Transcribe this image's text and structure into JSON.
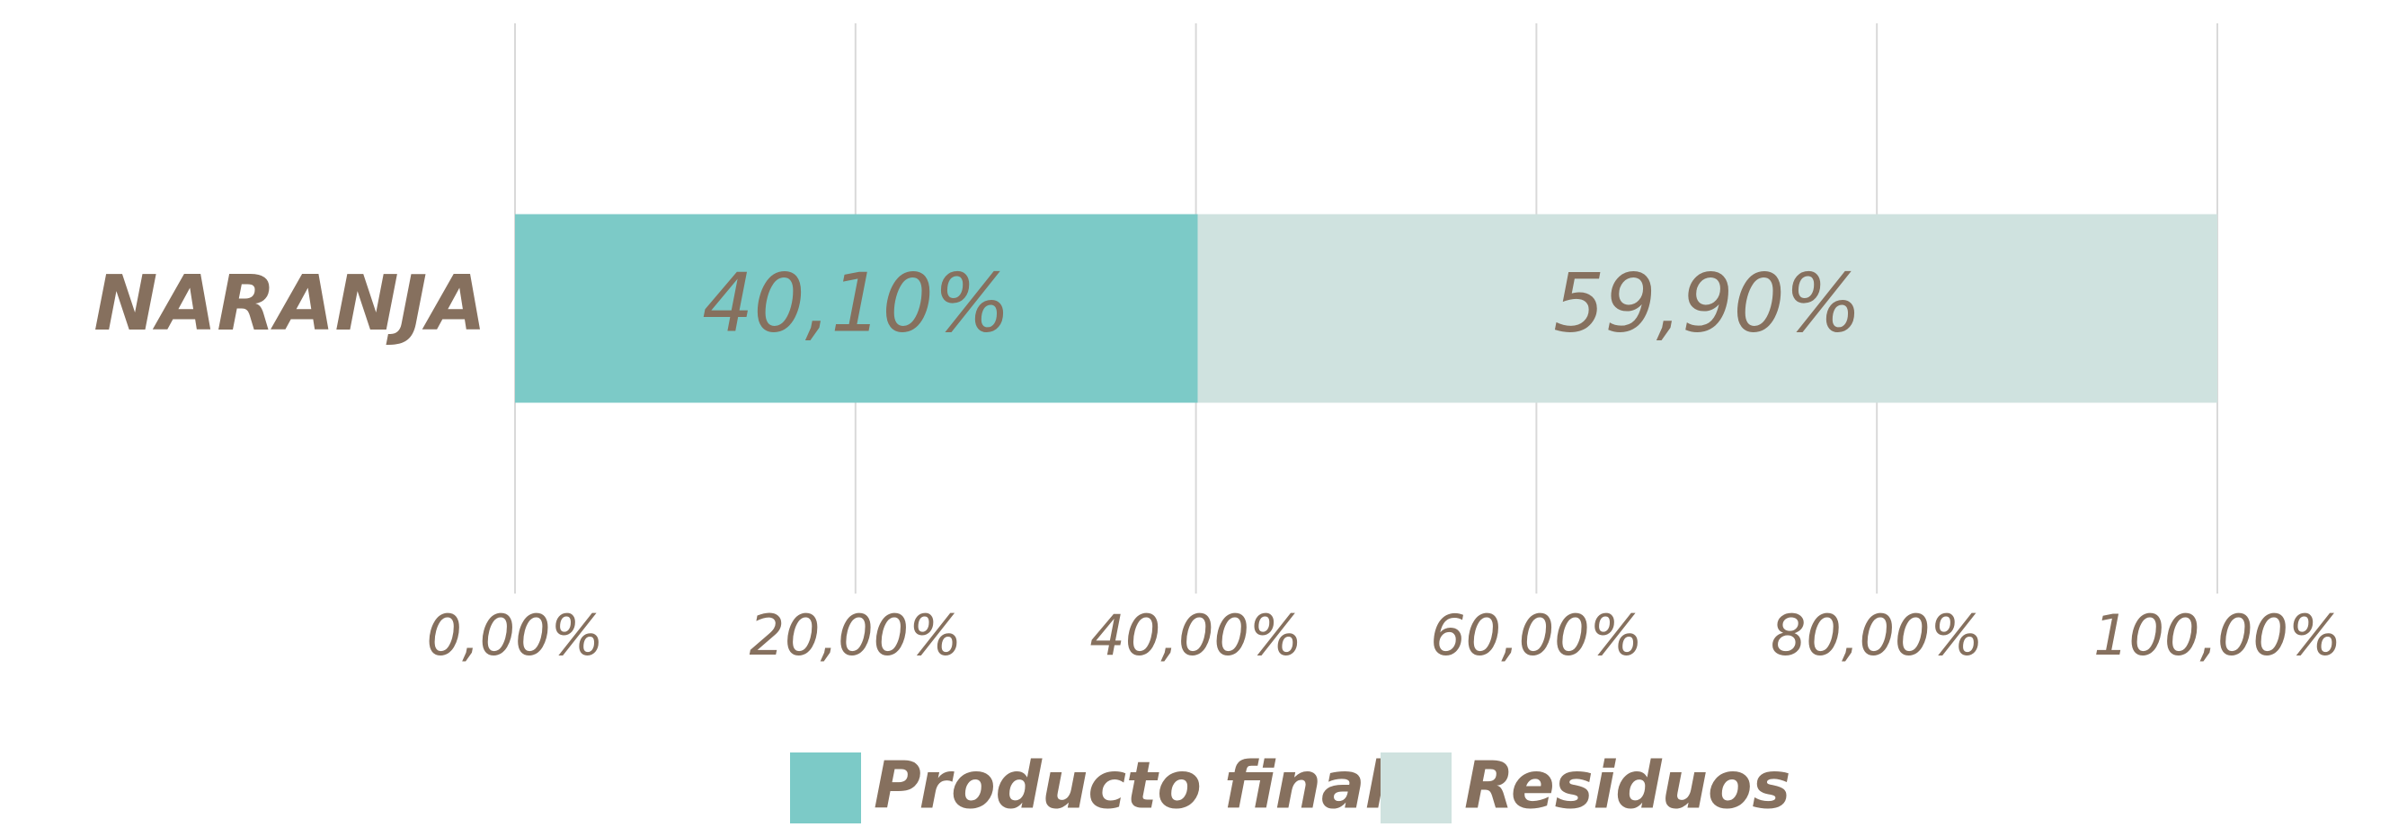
{
  "chart_data": {
    "type": "stacked-bar-horizontal",
    "categories": [
      "NARANJA"
    ],
    "series": [
      {
        "name": "Producto final",
        "color": "#7ccac7",
        "values": [
          40.1
        ],
        "value_labels": [
          "40,10%"
        ]
      },
      {
        "name": "Residuos",
        "color": "#cfe2df",
        "values": [
          59.9
        ],
        "value_labels": [
          "59,90%"
        ]
      }
    ],
    "xlim": [
      0,
      100
    ],
    "xticks": [
      {
        "value": 0,
        "label": "0,00%"
      },
      {
        "value": 20,
        "label": "20,00%"
      },
      {
        "value": 40,
        "label": "40,00%"
      },
      {
        "value": 60,
        "label": "60,00%"
      },
      {
        "value": 80,
        "label": "80,00%"
      },
      {
        "value": 100,
        "label": "100,00%"
      }
    ],
    "grid": true,
    "legend": "bottom"
  }
}
